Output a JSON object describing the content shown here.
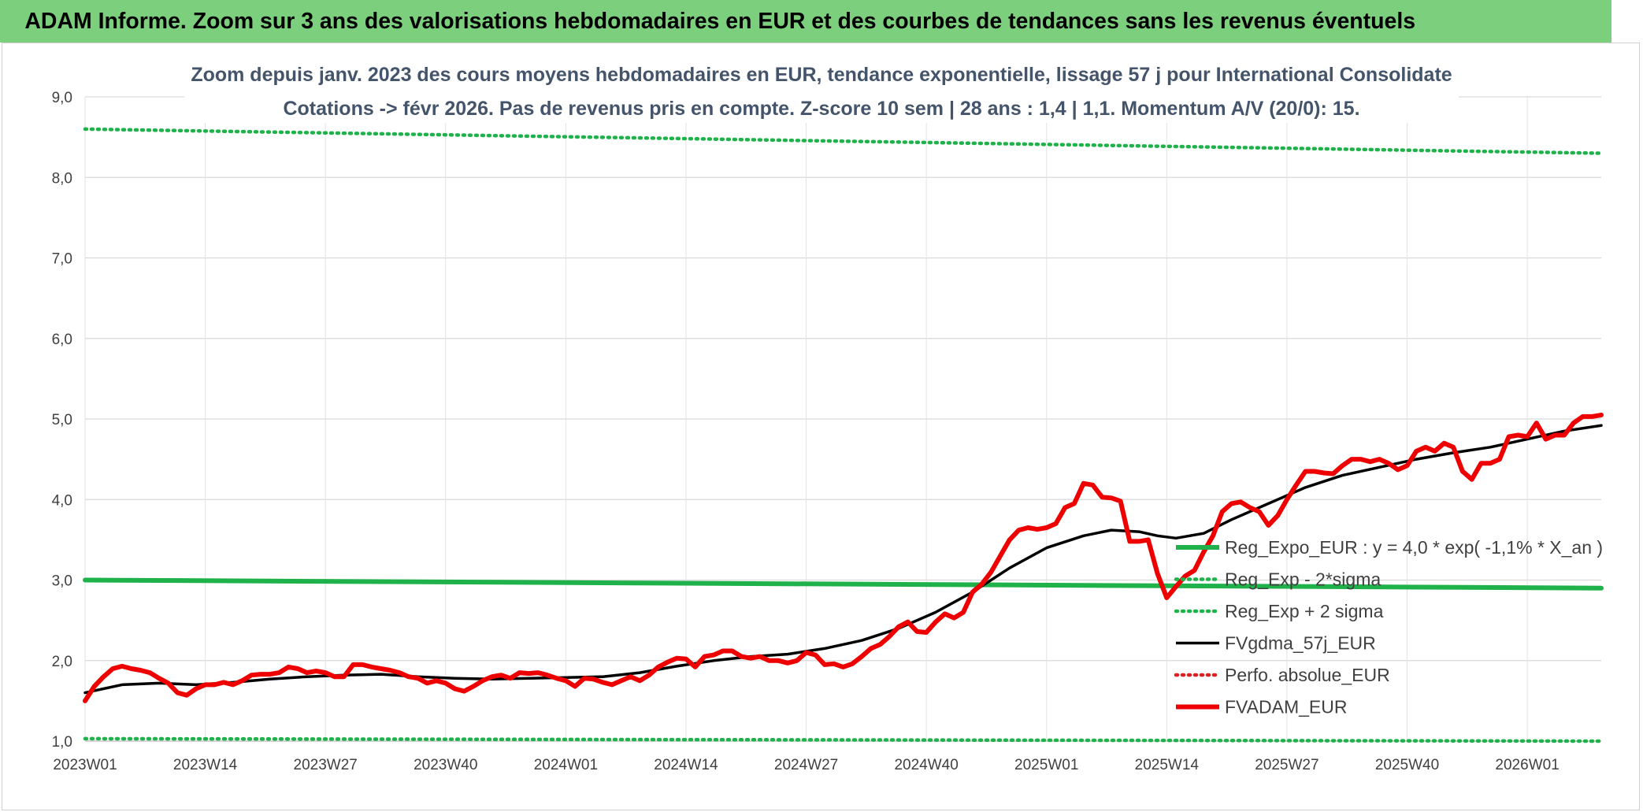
{
  "title": "ADAM Informe. Zoom sur 3 ans des valorisations hebdomadaires en EUR et des courbes de tendances sans les revenus éventuels",
  "colors": {
    "banner_bg": "#7ccf7c",
    "reg_expo": "#1fb24a",
    "fvgdma": "#000000",
    "perfo": "#e02020",
    "fvadam": "#ee0000"
  },
  "chart_data": {
    "type": "line",
    "title": "Zoom depuis janv. 2023 des cours moyens hebdomadaires en EUR, tendance exponentielle, lissage 57 j pour International Consolidate",
    "subtitle": "Cotations -> févr 2026. Pas de revenus pris en compte. Z-score 10 sem | 28 ans : 1,4 | 1,1. Momentum A/V (20/0): 15.",
    "xlabel": "",
    "ylabel": "",
    "ylim": [
      1.0,
      9.0
    ],
    "yticks": [
      "1,0",
      "2,0",
      "3,0",
      "4,0",
      "5,0",
      "6,0",
      "7,0",
      "8,0",
      "9,0"
    ],
    "xticks": [
      {
        "week": 0,
        "label": "2023W01"
      },
      {
        "week": 13,
        "label": "2023W14"
      },
      {
        "week": 26,
        "label": "2023W27"
      },
      {
        "week": 39,
        "label": "2023W40"
      },
      {
        "week": 52,
        "label": "2024W01"
      },
      {
        "week": 65,
        "label": "2024W14"
      },
      {
        "week": 78,
        "label": "2024W27"
      },
      {
        "week": 91,
        "label": "2024W40"
      },
      {
        "week": 104,
        "label": "2025W01"
      },
      {
        "week": 117,
        "label": "2025W14"
      },
      {
        "week": 130,
        "label": "2025W27"
      },
      {
        "week": 143,
        "label": "2025W40"
      },
      {
        "week": 156,
        "label": "2026W01"
      }
    ],
    "x_range": [
      0,
      164
    ],
    "grid": true,
    "legend_position": "right",
    "series": [
      {
        "name": "Reg_Expo_EUR : y = 4,0 * exp( -1,1% *  X_an )",
        "style": "solid-thick",
        "color": "#1fb24a",
        "points": [
          [
            0,
            3.0
          ],
          [
            164,
            2.9
          ]
        ]
      },
      {
        "name": "Reg_Exp - 2*sigma",
        "style": "dotted",
        "color": "#1fb24a",
        "points": [
          [
            0,
            1.03
          ],
          [
            164,
            1.0
          ]
        ]
      },
      {
        "name": "Reg_Exp + 2 sigma",
        "style": "dotted",
        "color": "#1fb24a",
        "points": [
          [
            0,
            8.6
          ],
          [
            164,
            8.3
          ]
        ]
      },
      {
        "name": "FVgdma_57j_EUR",
        "style": "solid",
        "color": "#000000",
        "points": [
          [
            0,
            1.6
          ],
          [
            4,
            1.7
          ],
          [
            8,
            1.72
          ],
          [
            12,
            1.7
          ],
          [
            16,
            1.73
          ],
          [
            20,
            1.77
          ],
          [
            24,
            1.8
          ],
          [
            28,
            1.82
          ],
          [
            32,
            1.83
          ],
          [
            36,
            1.8
          ],
          [
            40,
            1.78
          ],
          [
            44,
            1.77
          ],
          [
            48,
            1.78
          ],
          [
            52,
            1.79
          ],
          [
            56,
            1.8
          ],
          [
            60,
            1.85
          ],
          [
            64,
            1.93
          ],
          [
            68,
            2.0
          ],
          [
            72,
            2.05
          ],
          [
            76,
            2.08
          ],
          [
            80,
            2.15
          ],
          [
            84,
            2.25
          ],
          [
            88,
            2.4
          ],
          [
            92,
            2.6
          ],
          [
            96,
            2.85
          ],
          [
            100,
            3.15
          ],
          [
            104,
            3.4
          ],
          [
            108,
            3.55
          ],
          [
            111,
            3.62
          ],
          [
            114,
            3.6
          ],
          [
            116,
            3.55
          ],
          [
            118,
            3.52
          ],
          [
            121,
            3.58
          ],
          [
            124,
            3.75
          ],
          [
            128,
            3.95
          ],
          [
            132,
            4.15
          ],
          [
            136,
            4.3
          ],
          [
            140,
            4.4
          ],
          [
            144,
            4.5
          ],
          [
            148,
            4.58
          ],
          [
            152,
            4.65
          ],
          [
            156,
            4.75
          ],
          [
            160,
            4.85
          ],
          [
            164,
            4.92
          ]
        ]
      },
      {
        "name": "Perfo. absolue_EUR",
        "style": "dotted",
        "color": "#e02020",
        "points": []
      },
      {
        "name": "FVADAM_EUR",
        "style": "solid-thick",
        "color": "#ee0000",
        "points": [
          [
            0,
            1.5
          ],
          [
            1,
            1.68
          ],
          [
            2,
            1.8
          ],
          [
            3,
            1.9
          ],
          [
            4,
            1.93
          ],
          [
            5,
            1.9
          ],
          [
            6,
            1.88
          ],
          [
            7,
            1.85
          ],
          [
            8,
            1.78
          ],
          [
            9,
            1.72
          ],
          [
            10,
            1.6
          ],
          [
            11,
            1.57
          ],
          [
            12,
            1.65
          ],
          [
            13,
            1.7
          ],
          [
            14,
            1.7
          ],
          [
            15,
            1.73
          ],
          [
            16,
            1.7
          ],
          [
            17,
            1.75
          ],
          [
            18,
            1.82
          ],
          [
            19,
            1.83
          ],
          [
            20,
            1.83
          ],
          [
            21,
            1.85
          ],
          [
            22,
            1.92
          ],
          [
            23,
            1.9
          ],
          [
            24,
            1.85
          ],
          [
            25,
            1.87
          ],
          [
            26,
            1.85
          ],
          [
            27,
            1.8
          ],
          [
            28,
            1.8
          ],
          [
            29,
            1.95
          ],
          [
            30,
            1.95
          ],
          [
            31,
            1.92
          ],
          [
            32,
            1.9
          ],
          [
            33,
            1.88
          ],
          [
            34,
            1.85
          ],
          [
            35,
            1.8
          ],
          [
            36,
            1.78
          ],
          [
            37,
            1.72
          ],
          [
            38,
            1.75
          ],
          [
            39,
            1.72
          ],
          [
            40,
            1.65
          ],
          [
            41,
            1.62
          ],
          [
            42,
            1.68
          ],
          [
            43,
            1.75
          ],
          [
            44,
            1.8
          ],
          [
            45,
            1.82
          ],
          [
            46,
            1.78
          ],
          [
            47,
            1.85
          ],
          [
            48,
            1.84
          ],
          [
            49,
            1.85
          ],
          [
            50,
            1.82
          ],
          [
            51,
            1.78
          ],
          [
            52,
            1.75
          ],
          [
            53,
            1.68
          ],
          [
            54,
            1.78
          ],
          [
            55,
            1.77
          ],
          [
            56,
            1.73
          ],
          [
            57,
            1.7
          ],
          [
            58,
            1.75
          ],
          [
            59,
            1.8
          ],
          [
            60,
            1.75
          ],
          [
            61,
            1.82
          ],
          [
            62,
            1.92
          ],
          [
            63,
            1.98
          ],
          [
            64,
            2.03
          ],
          [
            65,
            2.02
          ],
          [
            66,
            1.92
          ],
          [
            67,
            2.05
          ],
          [
            68,
            2.07
          ],
          [
            69,
            2.12
          ],
          [
            70,
            2.12
          ],
          [
            71,
            2.05
          ],
          [
            72,
            2.03
          ],
          [
            73,
            2.05
          ],
          [
            74,
            2.0
          ],
          [
            75,
            2.0
          ],
          [
            76,
            1.97
          ],
          [
            77,
            2.0
          ],
          [
            78,
            2.1
          ],
          [
            79,
            2.07
          ],
          [
            80,
            1.95
          ],
          [
            81,
            1.96
          ],
          [
            82,
            1.92
          ],
          [
            83,
            1.96
          ],
          [
            84,
            2.05
          ],
          [
            85,
            2.15
          ],
          [
            86,
            2.2
          ],
          [
            87,
            2.3
          ],
          [
            88,
            2.42
          ],
          [
            89,
            2.48
          ],
          [
            90,
            2.36
          ],
          [
            91,
            2.35
          ],
          [
            92,
            2.48
          ],
          [
            93,
            2.58
          ],
          [
            94,
            2.53
          ],
          [
            95,
            2.6
          ],
          [
            96,
            2.85
          ],
          [
            97,
            2.95
          ],
          [
            98,
            3.1
          ],
          [
            99,
            3.3
          ],
          [
            100,
            3.5
          ],
          [
            101,
            3.62
          ],
          [
            102,
            3.65
          ],
          [
            103,
            3.63
          ],
          [
            104,
            3.65
          ],
          [
            105,
            3.7
          ],
          [
            106,
            3.9
          ],
          [
            107,
            3.95
          ],
          [
            108,
            4.2
          ],
          [
            109,
            4.18
          ],
          [
            110,
            4.03
          ],
          [
            111,
            4.02
          ],
          [
            112,
            3.98
          ],
          [
            113,
            3.48
          ],
          [
            114,
            3.48
          ],
          [
            115,
            3.5
          ],
          [
            116,
            3.08
          ],
          [
            117,
            2.78
          ],
          [
            118,
            2.92
          ],
          [
            119,
            3.05
          ],
          [
            120,
            3.12
          ],
          [
            121,
            3.35
          ],
          [
            122,
            3.55
          ],
          [
            123,
            3.85
          ],
          [
            124,
            3.95
          ],
          [
            125,
            3.97
          ],
          [
            126,
            3.9
          ],
          [
            127,
            3.85
          ],
          [
            128,
            3.68
          ],
          [
            129,
            3.8
          ],
          [
            130,
            4.0
          ],
          [
            131,
            4.18
          ],
          [
            132,
            4.35
          ],
          [
            133,
            4.35
          ],
          [
            134,
            4.33
          ],
          [
            135,
            4.32
          ],
          [
            136,
            4.42
          ],
          [
            137,
            4.5
          ],
          [
            138,
            4.5
          ],
          [
            139,
            4.47
          ],
          [
            140,
            4.5
          ],
          [
            141,
            4.45
          ],
          [
            142,
            4.37
          ],
          [
            143,
            4.42
          ],
          [
            144,
            4.6
          ],
          [
            145,
            4.65
          ],
          [
            146,
            4.6
          ],
          [
            147,
            4.7
          ],
          [
            148,
            4.65
          ],
          [
            149,
            4.35
          ],
          [
            150,
            4.25
          ],
          [
            151,
            4.45
          ],
          [
            152,
            4.45
          ],
          [
            153,
            4.5
          ],
          [
            154,
            4.78
          ],
          [
            155,
            4.8
          ],
          [
            156,
            4.78
          ],
          [
            157,
            4.95
          ],
          [
            158,
            4.75
          ],
          [
            159,
            4.8
          ],
          [
            160,
            4.8
          ],
          [
            161,
            4.95
          ],
          [
            162,
            5.03
          ],
          [
            163,
            5.03
          ],
          [
            164,
            5.05
          ]
        ]
      }
    ]
  }
}
